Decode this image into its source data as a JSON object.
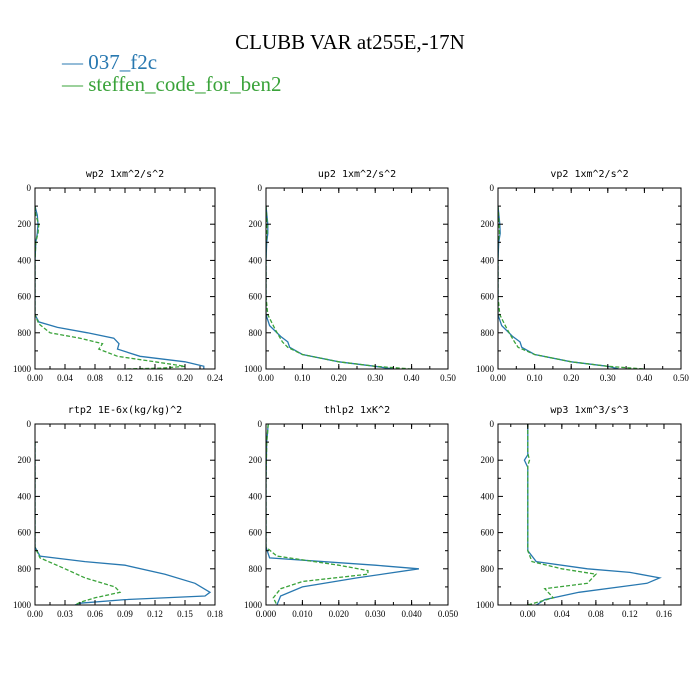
{
  "figure": {
    "title": "CLUBB VAR at255E,-17N",
    "legend": [
      {
        "name": "037_f2c",
        "marker": "—",
        "color": "#2878b0"
      },
      {
        "name": "steffen_code_for_ben2",
        "marker": "—",
        "color": "#3aa33a"
      }
    ]
  },
  "chart_data": [
    {
      "type": "line",
      "title": "wp2  1xm^2/s^2",
      "xlim": [
        0,
        0.24
      ],
      "xticks": [
        "0.00",
        "0.04",
        "0.08",
        "0.12",
        "0.16",
        "0.20",
        "0.24"
      ],
      "xtick_values": [
        0,
        0.04,
        0.08,
        0.12,
        0.16,
        0.2,
        0.24
      ],
      "ylim": [
        0,
        1000
      ],
      "yticks": [
        "0",
        "200",
        "400",
        "600",
        "800",
        "1000"
      ],
      "ytick_values": [
        0,
        200,
        400,
        600,
        800,
        1000
      ],
      "series": [
        {
          "name": "037_f2c",
          "x": [
            0.0,
            0.003,
            0.004,
            0.003,
            0.001,
            0.0,
            0.0,
            0.0,
            0.005,
            0.03,
            0.07,
            0.105,
            0.112,
            0.11,
            0.14,
            0.2,
            0.225,
            0.225
          ],
          "y": [
            100,
            150,
            200,
            250,
            300,
            400,
            600,
            700,
            740,
            770,
            800,
            830,
            860,
            890,
            930,
            960,
            985,
            1000
          ]
        },
        {
          "name": "steffen_code_for_ben2",
          "x": [
            0.0,
            0.001,
            0.005,
            0.004,
            0.001,
            0.0,
            0.0,
            0.0,
            0.005,
            0.02,
            0.06,
            0.09,
            0.085,
            0.11,
            0.16,
            0.2,
            0.17,
            0.12
          ],
          "y": [
            100,
            150,
            200,
            250,
            300,
            400,
            600,
            700,
            750,
            800,
            830,
            860,
            890,
            930,
            960,
            985,
            995,
            1000
          ]
        }
      ]
    },
    {
      "type": "line",
      "title": "up2  1xm^2/s^2",
      "xlim": [
        0,
        0.5
      ],
      "xticks": [
        "0.00",
        "0.10",
        "0.20",
        "0.30",
        "0.40",
        "0.50"
      ],
      "xtick_values": [
        0,
        0.1,
        0.2,
        0.3,
        0.4,
        0.5
      ],
      "ylim": [
        0,
        1000
      ],
      "yticks": [
        "0",
        "200",
        "400",
        "600",
        "800",
        "1000"
      ],
      "ytick_values": [
        0,
        200,
        400,
        600,
        800,
        1000
      ],
      "series": [
        {
          "name": "037_f2c",
          "x": [
            0.0,
            0.005,
            0.005,
            0.002,
            0.0,
            0.0,
            0.0,
            0.01,
            0.04,
            0.06,
            0.065,
            0.1,
            0.2,
            0.3,
            0.35
          ],
          "y": [
            100,
            200,
            250,
            300,
            400,
            600,
            700,
            760,
            820,
            850,
            880,
            920,
            960,
            985,
            1000
          ]
        },
        {
          "name": "steffen_code_for_ben2",
          "x": [
            0.0,
            0.003,
            0.003,
            0.0,
            0.0,
            0.0,
            0.005,
            0.025,
            0.045,
            0.06,
            0.1,
            0.2,
            0.3,
            0.4
          ],
          "y": [
            100,
            200,
            250,
            300,
            400,
            600,
            700,
            780,
            850,
            880,
            920,
            960,
            985,
            1000
          ]
        }
      ]
    },
    {
      "type": "line",
      "title": "vp2  1xm^2/s^2",
      "xlim": [
        0,
        0.5
      ],
      "xticks": [
        "0.00",
        "0.10",
        "0.20",
        "0.30",
        "0.40",
        "0.50"
      ],
      "xtick_values": [
        0,
        0.1,
        0.2,
        0.3,
        0.4,
        0.5
      ],
      "ylim": [
        0,
        1000
      ],
      "yticks": [
        "0",
        "200",
        "400",
        "600",
        "800",
        "1000"
      ],
      "ytick_values": [
        0,
        200,
        400,
        600,
        800,
        1000
      ],
      "series": [
        {
          "name": "037_f2c",
          "x": [
            0.0,
            0.005,
            0.006,
            0.002,
            0.0,
            0.0,
            0.0,
            0.01,
            0.04,
            0.06,
            0.065,
            0.1,
            0.2,
            0.3,
            0.33
          ],
          "y": [
            100,
            200,
            250,
            300,
            400,
            600,
            700,
            760,
            820,
            850,
            880,
            920,
            960,
            985,
            1000
          ]
        },
        {
          "name": "steffen_code_for_ben2",
          "x": [
            0.0,
            0.003,
            0.004,
            0.0,
            0.0,
            0.0,
            0.005,
            0.025,
            0.045,
            0.055,
            0.1,
            0.2,
            0.3,
            0.4
          ],
          "y": [
            100,
            200,
            250,
            300,
            400,
            600,
            700,
            780,
            850,
            880,
            920,
            960,
            985,
            1000
          ]
        }
      ]
    },
    {
      "type": "line",
      "title": "rtp2  1E-6x(kg/kg)^2",
      "xlim": [
        0,
        0.18
      ],
      "xticks": [
        "0.00",
        "0.03",
        "0.06",
        "0.09",
        "0.12",
        "0.15",
        "0.18"
      ],
      "xtick_values": [
        0,
        0.03,
        0.06,
        0.09,
        0.12,
        0.15,
        0.18
      ],
      "ylim": [
        0,
        1000
      ],
      "yticks": [
        "0",
        "200",
        "400",
        "600",
        "800",
        "1000"
      ],
      "ytick_values": [
        0,
        200,
        400,
        600,
        800,
        1000
      ],
      "series": [
        {
          "name": "037_f2c",
          "x": [
            0.0,
            0.0,
            0.0,
            0.005,
            0.05,
            0.09,
            0.13,
            0.16,
            0.175,
            0.17,
            0.09,
            0.045,
            0.04
          ],
          "y": [
            100,
            400,
            680,
            730,
            760,
            780,
            830,
            880,
            930,
            950,
            970,
            990,
            1000
          ]
        },
        {
          "name": "steffen_code_for_ben2",
          "x": [
            0.0,
            0.0,
            0.0,
            0.005,
            0.03,
            0.05,
            0.08,
            0.085,
            0.06,
            0.045,
            0.04
          ],
          "y": [
            100,
            400,
            680,
            740,
            800,
            850,
            900,
            930,
            960,
            985,
            1000
          ]
        }
      ]
    },
    {
      "type": "line",
      "title": "thlp2  1xK^2",
      "xlim": [
        0,
        0.05
      ],
      "xticks": [
        "0.000",
        "0.010",
        "0.020",
        "0.030",
        "0.040",
        "0.050"
      ],
      "xtick_values": [
        0,
        0.01,
        0.02,
        0.03,
        0.04,
        0.05
      ],
      "ylim": [
        0,
        1000
      ],
      "yticks": [
        "0",
        "200",
        "400",
        "600",
        "800",
        "1000"
      ],
      "ytick_values": [
        0,
        200,
        400,
        600,
        800,
        1000
      ],
      "series": [
        {
          "name": "037_f2c",
          "x": [
            0.0006,
            0.0004,
            0.0002,
            0.0,
            0.0,
            0.001,
            0.03,
            0.042,
            0.025,
            0.01,
            0.004,
            0.003
          ],
          "y": [
            0,
            50,
            100,
            300,
            680,
            740,
            780,
            800,
            850,
            900,
            950,
            1000
          ]
        },
        {
          "name": "steffen_code_for_ben2",
          "x": [
            0.0006,
            0.0004,
            0.0002,
            0.0,
            0.0,
            0.003,
            0.02,
            0.028,
            0.028,
            0.01,
            0.004,
            0.002,
            0.003
          ],
          "y": [
            0,
            50,
            100,
            300,
            680,
            730,
            780,
            810,
            830,
            870,
            910,
            960,
            1000
          ]
        }
      ]
    },
    {
      "type": "line",
      "title": "wp3  1xm^3/s^3",
      "xlim": [
        -0.035,
        0.18
      ],
      "xticks": [
        "0.00",
        "0.04",
        "0.08",
        "0.12",
        "0.16"
      ],
      "xtick_values": [
        0,
        0.04,
        0.08,
        0.12,
        0.16
      ],
      "ylim": [
        0,
        1000
      ],
      "yticks": [
        "0",
        "200",
        "400",
        "600",
        "800",
        "1000"
      ],
      "ytick_values": [
        0,
        200,
        400,
        600,
        800,
        1000
      ],
      "series": [
        {
          "name": "037_f2c",
          "x": [
            0.0,
            0.0,
            0.0,
            -0.004,
            0.0,
            0.0,
            0.0,
            0.01,
            0.07,
            0.12,
            0.155,
            0.14,
            0.06,
            0.02,
            0.01
          ],
          "y": [
            0,
            100,
            170,
            200,
            240,
            300,
            700,
            760,
            800,
            820,
            850,
            880,
            930,
            970,
            1000
          ]
        },
        {
          "name": "steffen_code_for_ben2",
          "x": [
            0.0,
            0.0,
            0.0,
            0.002,
            0.0,
            0.0,
            0.0,
            0.005,
            0.04,
            0.08,
            0.07,
            0.02,
            0.03,
            0.0
          ],
          "y": [
            0,
            100,
            160,
            200,
            230,
            300,
            700,
            760,
            800,
            830,
            880,
            910,
            960,
            1000
          ]
        }
      ]
    }
  ]
}
